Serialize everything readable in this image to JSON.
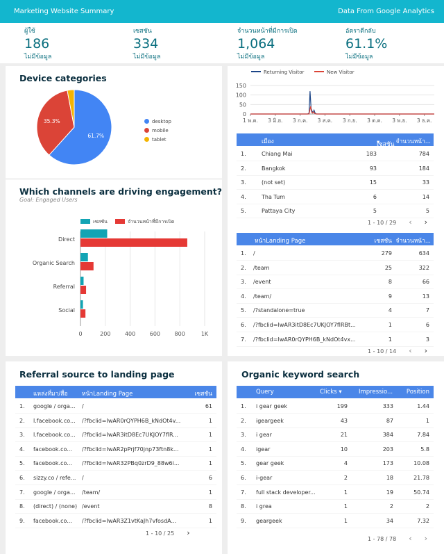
{
  "header": {
    "title": "Marketing Website Summary",
    "source": "Data From Google Analytics"
  },
  "kpis": [
    {
      "label": "ผู้ใช้",
      "value": "186",
      "sub": "ไม่มีข้อมูล"
    },
    {
      "label": "เซสชัน",
      "value": "334",
      "sub": "ไม่มีข้อมูล"
    },
    {
      "label": "จำนวนหน้าที่มีการเปิด",
      "value": "1,064",
      "sub": "ไม่มีข้อมูล"
    },
    {
      "label": "อัตราตีกลับ",
      "value": "61.1%",
      "sub": "ไม่มีข้อมูล"
    }
  ],
  "device": {
    "title": "Device categories",
    "chart_data": {
      "type": "pie",
      "slices": [
        {
          "label": "desktop",
          "value": 61.7,
          "color": "#4285f4"
        },
        {
          "label": "mobile",
          "value": 35.3,
          "color": "#db4437"
        },
        {
          "label": "tablet",
          "value": 3.0,
          "color": "#f4b400"
        }
      ],
      "data_labels": [
        "61.7%",
        "35.3%"
      ],
      "legend": "right"
    }
  },
  "timeline": {
    "chart_data": {
      "type": "line",
      "x_ticks": [
        "1 พ.ค.",
        "3 มิ.ย.",
        "3 ก.ค.",
        "3 ส.ค.",
        "3 ก.ย.",
        "3 ต.ค.",
        "3 พ.ย.",
        "3 ธ.ค."
      ],
      "y_ticks": [
        "150",
        "100",
        "50",
        "0"
      ],
      "ylim": [
        0,
        150
      ],
      "legend": "top",
      "series": [
        {
          "name": "Returning Visitor",
          "color": "#1c4587",
          "points": [
            [
              0,
              0
            ],
            [
              2.3,
              0
            ],
            [
              2.36,
              5
            ],
            [
              2.4,
              120
            ],
            [
              2.44,
              30
            ],
            [
              2.48,
              15
            ],
            [
              2.52,
              8
            ],
            [
              2.56,
              20
            ],
            [
              2.6,
              5
            ],
            [
              2.66,
              0
            ],
            [
              7.4,
              0
            ]
          ]
        },
        {
          "name": "New Visitor",
          "color": "#db4437",
          "points": [
            [
              0,
              0
            ],
            [
              2.36,
              0
            ],
            [
              2.42,
              40
            ],
            [
              2.46,
              10
            ],
            [
              2.5,
              5
            ],
            [
              2.54,
              12
            ],
            [
              2.58,
              3
            ],
            [
              2.64,
              0
            ],
            [
              7.4,
              0
            ]
          ]
        }
      ]
    }
  },
  "cities": {
    "headers": [
      "เมือง",
      "เซสชัน",
      "จำนวนหน้า..."
    ],
    "rows": [
      {
        "n": "1.",
        "a": "Chiang Mai",
        "b": "183",
        "c": "784"
      },
      {
        "n": "2.",
        "a": "Bangkok",
        "b": "93",
        "b2": "",
        "c": "184"
      },
      {
        "n": "3.",
        "a": "(not set)",
        "b": "15",
        "c": "33"
      },
      {
        "n": "4.",
        "a": "Tha Tum",
        "b": "6",
        "c": "14"
      },
      {
        "n": "5.",
        "a": "Pattaya City",
        "b": "5",
        "c": "5"
      }
    ],
    "pager": "1 - 10 / 29"
  },
  "landing": {
    "headers": [
      "หน้าLanding Page",
      "เซสชัน",
      "จำนวนหน้า..."
    ],
    "rows": [
      {
        "n": "1.",
        "a": "/",
        "b": "279",
        "c": "634"
      },
      {
        "n": "2.",
        "a": "/team",
        "b": "25",
        "c": "322"
      },
      {
        "n": "3.",
        "a": "/event",
        "b": "8",
        "c": "66"
      },
      {
        "n": "4.",
        "a": "/team/",
        "b": "9",
        "c": "13"
      },
      {
        "n": "5.",
        "a": "/?standalone=true",
        "b": "4",
        "c": "7"
      },
      {
        "n": "6.",
        "a": "/?fbclid=IwAR3itD8Ec7UKJOY7flRBt...",
        "b": "1",
        "c": "6"
      },
      {
        "n": "7.",
        "a": "/?fbclid=IwAR0rQYPH6B_kNdOt4vx...",
        "b": "1",
        "c": "3"
      }
    ],
    "pager": "1 - 10 / 14"
  },
  "channels": {
    "title": "Which channels are driving engagement?",
    "subtitle": "Goal: Engaged Users",
    "chart_data": {
      "type": "bar",
      "orientation": "horizontal",
      "categories": [
        "Direct",
        "Organic Search",
        "Referral",
        "Social"
      ],
      "series": [
        {
          "name": "เซสชัน",
          "color": "#12a4b4",
          "values": [
            215,
            60,
            25,
            20
          ]
        },
        {
          "name": "จำนวนหน้าที่มีการเปิด",
          "color": "#e53935",
          "values": [
            860,
            105,
            45,
            40
          ]
        }
      ],
      "x_ticks": [
        "0",
        "200",
        "400",
        "600",
        "800",
        "1K"
      ],
      "xlim": [
        0,
        1000
      ],
      "legend": "top"
    }
  },
  "referral": {
    "title": "Referral source to landing page",
    "headers": [
      "แหล่งที่มา/สื่อ",
      "หน้าLanding Page",
      "เซสชัน"
    ],
    "rows": [
      {
        "n": "1.",
        "a": "google / orga...",
        "b": "/",
        "c": "61"
      },
      {
        "n": "2.",
        "a": "l.facebook.co...",
        "b": "/?fbclid=IwAR0rQYPH6B_kNdOt4v...",
        "c": "1"
      },
      {
        "n": "3.",
        "a": "l.facebook.co...",
        "b": "/?fbclid=IwAR3itD8Ec7UKJOY7flR...",
        "c": "1"
      },
      {
        "n": "4.",
        "a": "facebook.co...",
        "b": "/?fbclid=IwAR2pPrjf70jnp73ftn8k...",
        "c": "1"
      },
      {
        "n": "5.",
        "a": "facebook.co...",
        "b": "/?fbclid=IwAR32PBq0zrD9_88w6i...",
        "c": "1"
      },
      {
        "n": "6.",
        "a": "sizzy.co / refe...",
        "b": "/",
        "c": "6"
      },
      {
        "n": "7.",
        "a": "google / orga...",
        "b": "/team/",
        "c": "1"
      },
      {
        "n": "8.",
        "a": "(direct) / (none)",
        "b": "/event",
        "c": "8"
      },
      {
        "n": "9.",
        "a": "facebook.co...",
        "b": "/?fbclid=IwAR3Z1vtKaJh7vfosdA...",
        "c": "1"
      }
    ],
    "pager": "1 - 10 / 25"
  },
  "organic": {
    "title": "Organic keyword search",
    "headers": [
      "Query",
      "Clicks ▾",
      "Impressio...",
      "Position"
    ],
    "rows": [
      {
        "n": "1.",
        "a": "i gear geek",
        "b": "199",
        "c": "333",
        "d": "1.44"
      },
      {
        "n": "2.",
        "a": "igeargeek",
        "b": "43",
        "c": "87",
        "d": "1"
      },
      {
        "n": "3.",
        "a": "i gear",
        "b": "21",
        "c": "384",
        "d": "7.84"
      },
      {
        "n": "4.",
        "a": "igear",
        "b": "10",
        "c": "203",
        "d": "5.8"
      },
      {
        "n": "5.",
        "a": "gear geek",
        "b": "4",
        "c": "173",
        "d": "10.08"
      },
      {
        "n": "6.",
        "a": "i-gear",
        "b": "2",
        "c": "18",
        "d": "21.78"
      },
      {
        "n": "7.",
        "a": "full stack developer...",
        "b": "1",
        "c": "19",
        "d": "50.74"
      },
      {
        "n": "8.",
        "a": "i grea",
        "b": "1",
        "c": "2",
        "d": "2"
      },
      {
        "n": "9.",
        "a": "geargeek",
        "b": "1",
        "c": "34",
        "d": "7.32"
      }
    ],
    "pager": "1 - 78 / 78"
  },
  "icons": {
    "prev": "chevron-left-icon",
    "next": "chevron-right-icon",
    "sort": "sort-down-icon"
  }
}
